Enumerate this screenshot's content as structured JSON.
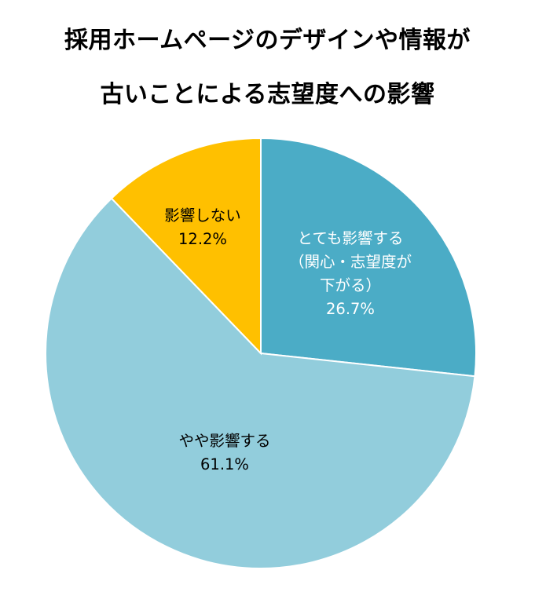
{
  "chart_data": {
    "type": "pie",
    "title_lines": [
      "採用ホームページのデザインや情報が",
      "古いことによる志望度への影響"
    ],
    "slices": [
      {
        "label_lines": [
          "とても影響する",
          "（関心・志望度が",
          "下がる）"
        ],
        "value": 26.7,
        "value_label": "26.7%",
        "color": "#4BACC6",
        "text_color": "#FFFFFF"
      },
      {
        "label_lines": [
          "やや影響する"
        ],
        "value": 61.1,
        "value_label": "61.1%",
        "color": "#92CDDC",
        "text_color": "#000000"
      },
      {
        "label_lines": [
          "影響しない"
        ],
        "value": 12.2,
        "value_label": "12.2%",
        "color": "#FFC000",
        "text_color": "#000000"
      }
    ],
    "start": "12 o'clock",
    "direction": "clockwise",
    "legend": "none"
  }
}
